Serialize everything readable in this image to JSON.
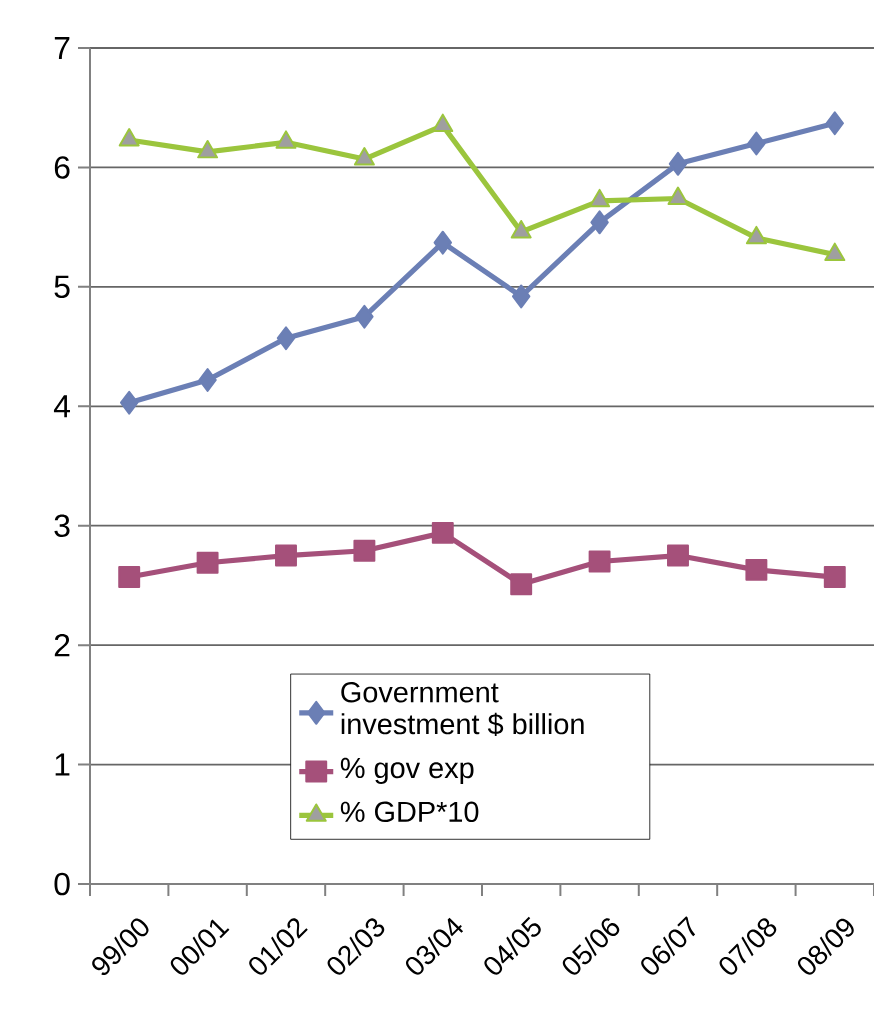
{
  "chart_data": {
    "type": "line",
    "categories": [
      "99/00",
      "00/01",
      "01/02",
      "02/03",
      "03/04",
      "04/05",
      "05/06",
      "06/07",
      "07/08",
      "08/09"
    ],
    "series": [
      {
        "name": "Government investment $ billion",
        "color": "#6b7fb5",
        "marker": "diamond",
        "values": [
          4.03,
          4.22,
          4.57,
          4.75,
          5.37,
          4.92,
          5.54,
          6.03,
          6.2,
          6.37
        ]
      },
      {
        "name": "% gov exp",
        "color": "#a5507a",
        "marker": "square",
        "values": [
          2.57,
          2.69,
          2.75,
          2.79,
          2.94,
          2.51,
          2.7,
          2.75,
          2.63,
          2.57
        ]
      },
      {
        "name": "% GDP*10",
        "color": "#9bc53d",
        "marker": "triangle",
        "values": [
          6.23,
          6.13,
          6.21,
          6.07,
          6.35,
          5.46,
          5.72,
          5.74,
          5.41,
          5.27
        ]
      }
    ],
    "ylim": [
      0,
      7
    ],
    "yticks": [
      0,
      1,
      2,
      3,
      4,
      5,
      6,
      7
    ],
    "grid": "y",
    "legend": "bottom",
    "line_style": "solid"
  }
}
